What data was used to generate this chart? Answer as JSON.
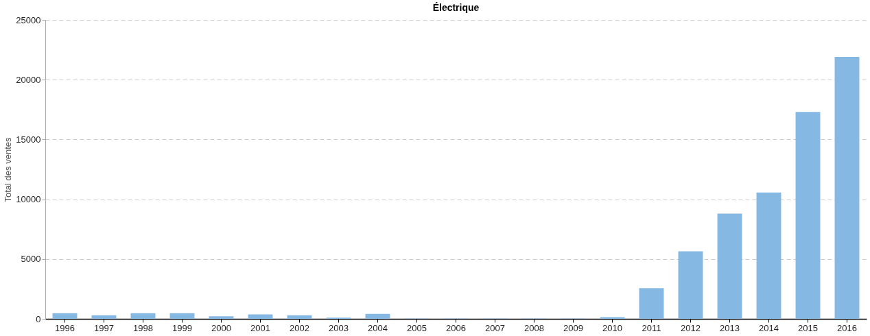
{
  "chart_data": {
    "type": "bar",
    "title": "Électrique",
    "ylabel": "Total des ventes",
    "categories": [
      "1996",
      "1997",
      "1998",
      "1999",
      "2000",
      "2001",
      "2002",
      "2003",
      "2004",
      "2005",
      "2006",
      "2007",
      "2008",
      "2009",
      "2010",
      "2011",
      "2012",
      "2013",
      "2014",
      "2015",
      "2016"
    ],
    "values": [
      480,
      300,
      480,
      480,
      220,
      370,
      300,
      100,
      420,
      30,
      30,
      30,
      30,
      30,
      150,
      2560,
      5650,
      8800,
      10560,
      17300,
      21900
    ],
    "color": "#85b8e3",
    "ylim": [
      0,
      25000
    ],
    "yticks": [
      0,
      5000,
      10000,
      15000,
      20000,
      25000
    ],
    "grid": "y"
  }
}
